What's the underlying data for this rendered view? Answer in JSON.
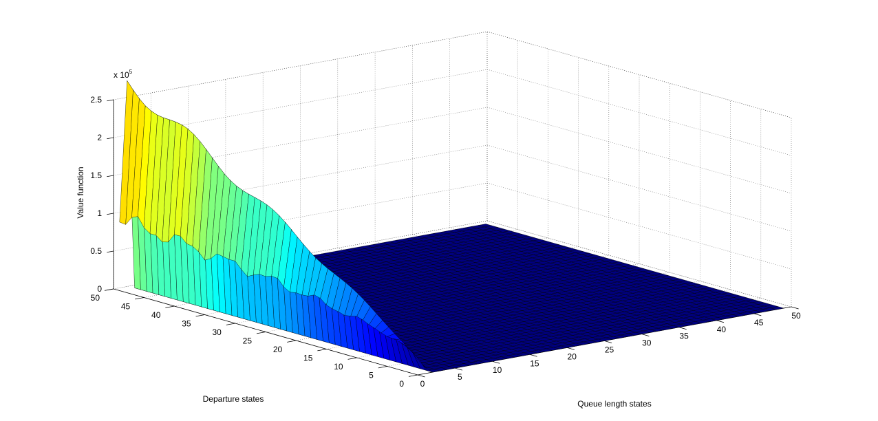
{
  "chart_data": {
    "type": "surface",
    "title": "",
    "xlabel": "Queue length states",
    "ylabel": "Departure states",
    "zlabel": "Value function",
    "z_exponent_label": "x 10",
    "z_exponent_power": "5",
    "xlim": [
      0,
      50
    ],
    "ylim": [
      0,
      50
    ],
    "zlim": [
      0,
      2.5
    ],
    "z_scale": 100000,
    "x_ticks": [
      "0",
      "5",
      "10",
      "15",
      "20",
      "25",
      "30",
      "35",
      "40",
      "45",
      "50"
    ],
    "y_ticks": [
      "0",
      "5",
      "10",
      "15",
      "20",
      "25",
      "30",
      "35",
      "40",
      "45",
      "50"
    ],
    "z_ticks": [
      "0",
      "0.5",
      "1",
      "1.5",
      "2",
      "2.5"
    ],
    "grid": true,
    "colormap": "jet",
    "surface": {
      "x_range": [
        0,
        49
      ],
      "y_range": [
        0,
        49
      ],
      "description_points": [
        {
          "x": 0,
          "y": 49,
          "z": 0.93
        },
        {
          "x": 0,
          "y": 25,
          "z": 0.85
        },
        {
          "x": 0,
          "y": 10,
          "z": 0.55
        },
        {
          "x": 0,
          "y": 0,
          "z": 0.2
        },
        {
          "x": 1,
          "y": 49,
          "z": 2.75
        },
        {
          "x": 1,
          "y": 30,
          "z": 2.2
        },
        {
          "x": 2,
          "y": 0,
          "z": 0.0
        },
        {
          "x": 10,
          "y": 0,
          "z": 0.0
        },
        {
          "x": 49,
          "y": 49,
          "z": 0.0
        }
      ]
    }
  }
}
